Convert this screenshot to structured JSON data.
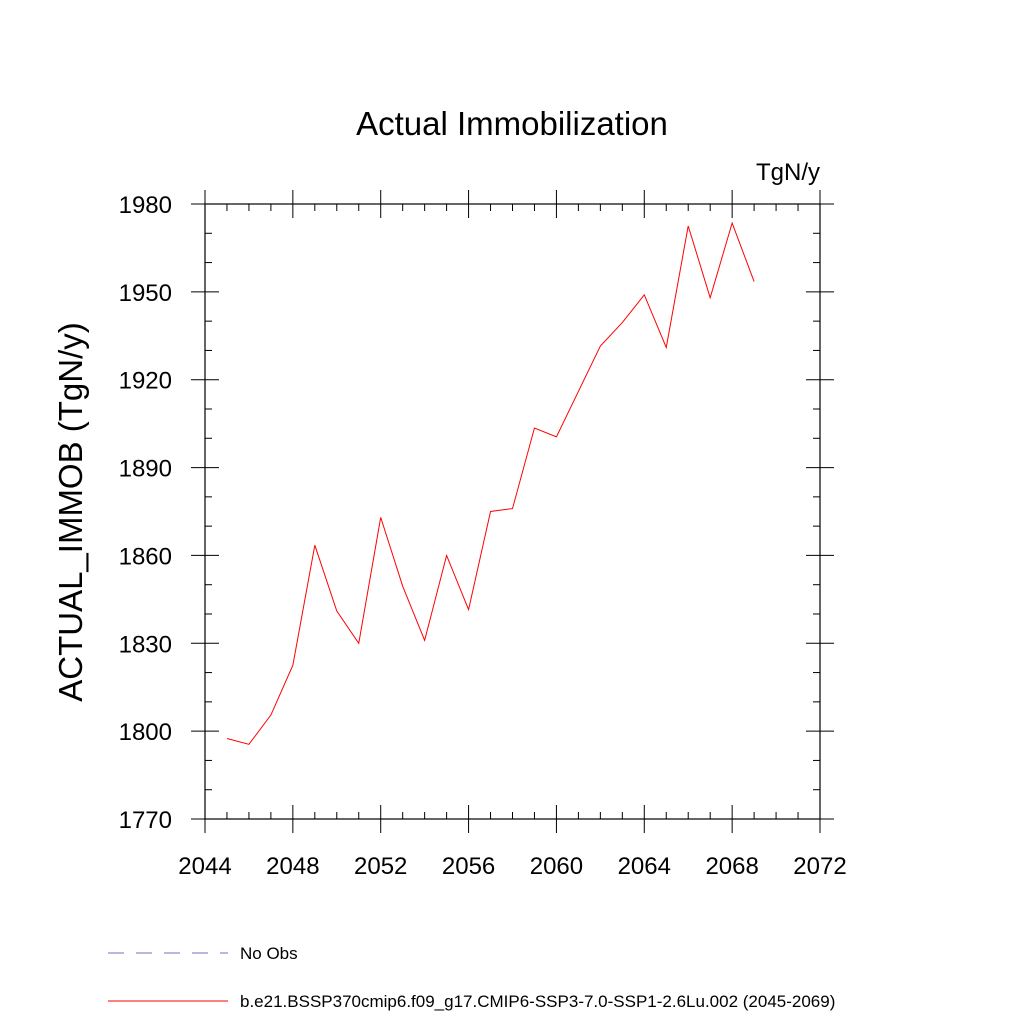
{
  "chart_data": {
    "type": "line",
    "title": "Actual Immobilization",
    "units": "TgN/y",
    "xlabel": "",
    "ylabel": "ACTUAL_IMMOB  (TgN/y)",
    "xlim": [
      2044,
      2072
    ],
    "ylim": [
      1770,
      1980
    ],
    "x_ticks": [
      "2044",
      "2048",
      "2052",
      "2056",
      "2060",
      "2064",
      "2068",
      "2072"
    ],
    "y_ticks": [
      "1770",
      "1800",
      "1830",
      "1860",
      "1890",
      "1920",
      "1950",
      "1980"
    ],
    "x_tick_values": [
      2044,
      2048,
      2052,
      2056,
      2060,
      2064,
      2068,
      2072
    ],
    "y_tick_values": [
      1770,
      1800,
      1830,
      1860,
      1890,
      1920,
      1950,
      1980
    ],
    "x_minor_step": 1,
    "y_minor_step": 10,
    "grid": false,
    "legend_position": "bottom-left",
    "series": [
      {
        "name": "b.e21.BSSP370cmip6.f09_g17.CMIP6-SSP3-7.0-SSP1-2.6Lu.002 (2045-2069)",
        "color": "#ff0000",
        "style": "solid",
        "x": [
          2045,
          2046,
          2047,
          2048,
          2049,
          2050,
          2051,
          2052,
          2053,
          2054,
          2055,
          2056,
          2057,
          2058,
          2059,
          2060,
          2061,
          2062,
          2063,
          2064,
          2065,
          2066,
          2067,
          2068,
          2069
        ],
        "values": [
          1797.5,
          1795.5,
          1805.5,
          1822.5,
          1863.5,
          1841,
          1830,
          1873,
          1849.5,
          1831,
          1860,
          1841.5,
          1875,
          1876,
          1903.5,
          1900.5,
          1916,
          1931.5,
          1939.5,
          1949,
          1931,
          1972.5,
          1948,
          1973.5,
          1953.5
        ]
      },
      {
        "name": "No Obs",
        "color": "#7a6bb8",
        "style": "dashed",
        "x": [],
        "values": []
      }
    ]
  }
}
